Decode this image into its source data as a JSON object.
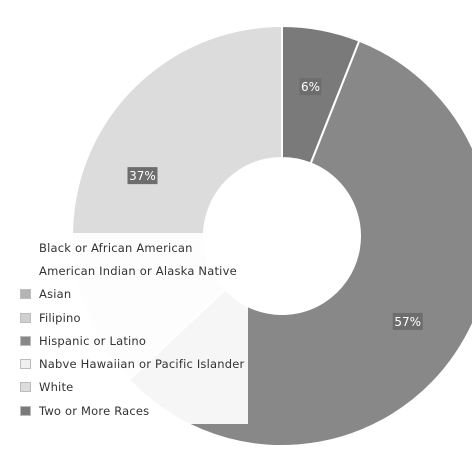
{
  "chart_data": {
    "type": "pie",
    "donut": true,
    "categories": [
      "Black or African American",
      "American Indian or Alaska Native",
      "Asian",
      "Filipino",
      "Hispanic or Latino",
      "Native Hawaiian or Pacific Islander",
      "White",
      "Two or More Races"
    ],
    "legend_labels": [
      "Black or African American",
      "American Indian or Alaska Native",
      "Asian",
      "Filipino",
      "Hispanic or Latino",
      "Nabve Hawaiian or Pacific Islander",
      "White",
      "Two or More Races"
    ],
    "values": [
      0,
      0,
      0,
      0,
      57,
      0,
      37,
      6
    ],
    "data_labels": [
      "",
      "",
      "",
      "",
      "57%",
      "",
      "37%",
      "6%"
    ],
    "colors": [
      "#ffffff",
      "#ffffff",
      "#b4b4b4",
      "#cfcfcf",
      "#888888",
      "#efefef",
      "#dcdcdc",
      "#7a7a7a"
    ],
    "label_color": "#6d6d6d",
    "legend_position": "bottom-left"
  }
}
